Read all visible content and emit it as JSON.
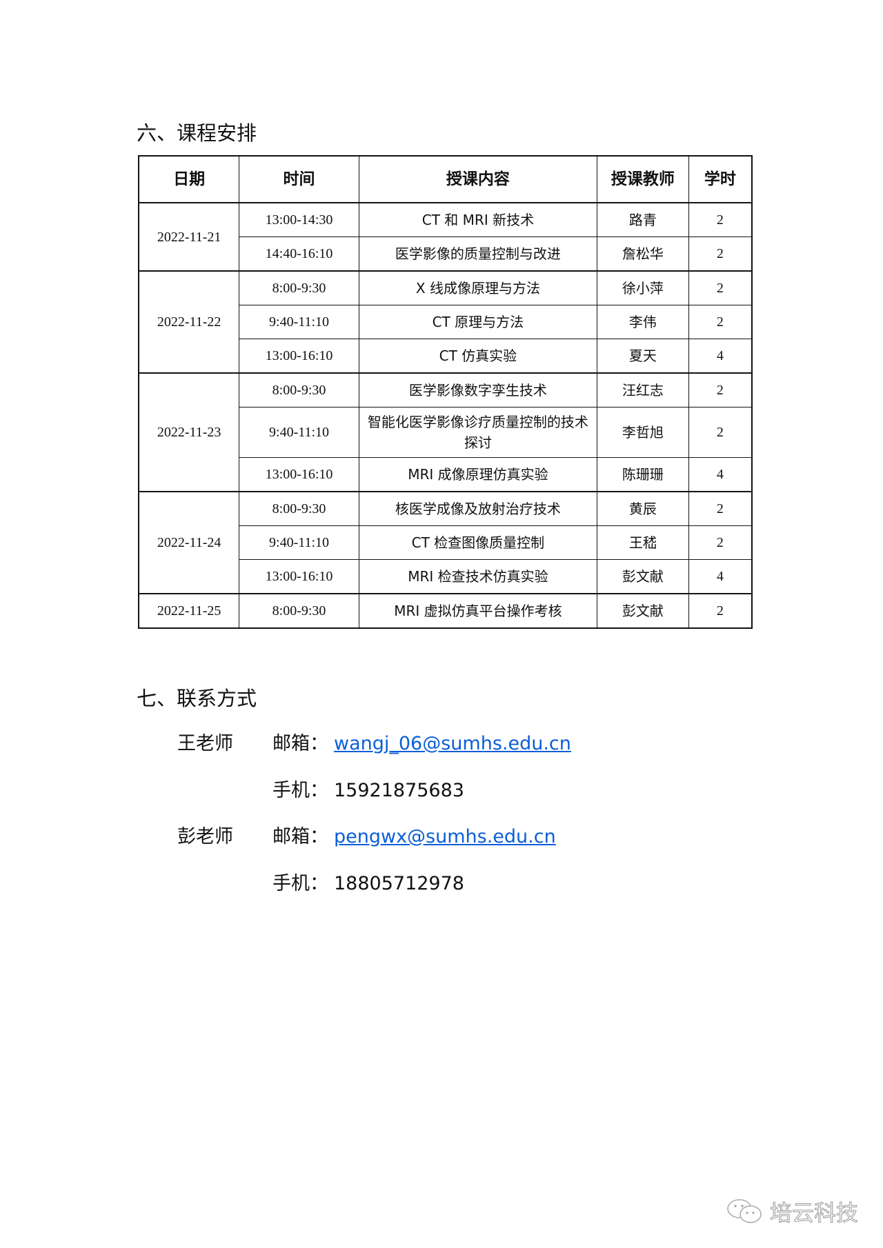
{
  "section6": {
    "title": "六、课程安排",
    "headers": [
      "日期",
      "时间",
      "授课内容",
      "授课教师",
      "学时"
    ],
    "groups": [
      {
        "date": "2022-11-21",
        "rows": [
          {
            "time": "13:00-14:30",
            "content": "CT 和 MRI 新技术",
            "teacher": "路青",
            "hours": "2"
          },
          {
            "time": "14:40-16:10",
            "content": "医学影像的质量控制与改进",
            "teacher": "詹松华",
            "hours": "2"
          }
        ]
      },
      {
        "date": "2022-11-22",
        "rows": [
          {
            "time": "8:00-9:30",
            "content": "X 线成像原理与方法",
            "teacher": "徐小萍",
            "hours": "2"
          },
          {
            "time": "9:40-11:10",
            "content": "CT 原理与方法",
            "teacher": "李伟",
            "hours": "2"
          },
          {
            "time": "13:00-16:10",
            "content": "CT 仿真实验",
            "teacher": "夏天",
            "hours": "4"
          }
        ]
      },
      {
        "date": "2022-11-23",
        "rows": [
          {
            "time": "8:00-9:30",
            "content": "医学影像数字孪生技术",
            "teacher": "汪红志",
            "hours": "2"
          },
          {
            "time": "9:40-11:10",
            "content": "智能化医学影像诊疗质量控制的技术探讨",
            "teacher": "李哲旭",
            "hours": "2"
          },
          {
            "time": "13:00-16:10",
            "content": "MRI 成像原理仿真实验",
            "teacher": "陈珊珊",
            "hours": "4"
          }
        ]
      },
      {
        "date": "2022-11-24",
        "rows": [
          {
            "time": "8:00-9:30",
            "content": "核医学成像及放射治疗技术",
            "teacher": "黄辰",
            "hours": "2"
          },
          {
            "time": "9:40-11:10",
            "content": "CT 检查图像质量控制",
            "teacher": "王嵇",
            "hours": "2"
          },
          {
            "time": "13:00-16:10",
            "content": "MRI 检查技术仿真实验",
            "teacher": "彭文献",
            "hours": "4"
          }
        ]
      },
      {
        "date": "2022-11-25",
        "rows": [
          {
            "time": "8:00-9:30",
            "content": "MRI 虚拟仿真平台操作考核",
            "teacher": "彭文献",
            "hours": "2"
          }
        ]
      }
    ]
  },
  "section7": {
    "title": "七、联系方式",
    "contacts": [
      {
        "name": "王老师",
        "email_label": "邮箱：",
        "email": "wangj_06@sumhs.edu.cn",
        "phone_label": "手机：",
        "phone": "15921875683"
      },
      {
        "name": "彭老师",
        "email_label": "邮箱：",
        "email": "pengwx@sumhs.edu.cn",
        "phone_label": "手机：",
        "phone": "18805712978"
      }
    ]
  },
  "watermark": {
    "icon": "wechat-icon",
    "text": "培云科技"
  },
  "colors": {
    "link": "#0b5ed7"
  }
}
